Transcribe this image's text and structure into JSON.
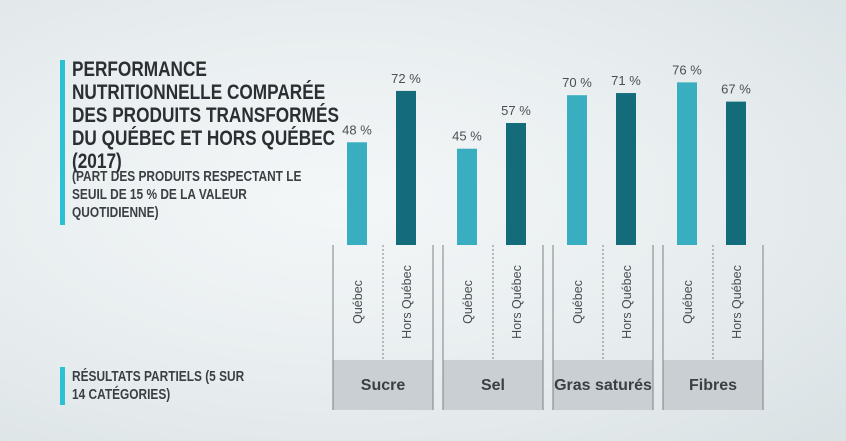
{
  "chart_data": {
    "type": "bar",
    "title": "PERFORMANCE NUTRITIONNELLE COMPARÉE DES PRODUITS TRANSFORMÉS DU QUÉBEC ET HORS QUÉBEC (2017)",
    "subtitle": "(PART DES PRODUITS RESPECTANT LE SEUIL DE 15 % DE LA VALEUR QUOTIDIENNE)",
    "note": "RÉSULTATS PARTIELS (5 SUR 14 CATÉGORIES)",
    "categories": [
      "Sucre",
      "Sel",
      "Gras saturés",
      "Fibres"
    ],
    "series": [
      {
        "name": "Québec",
        "color": "#3aaec1",
        "values": [
          48,
          45,
          70,
          76
        ],
        "value_labels": [
          "48 %",
          "45 %",
          "70 %",
          "76 %"
        ]
      },
      {
        "name": "Hors Québec",
        "color": "#146b79",
        "values": [
          72,
          57,
          71,
          67
        ],
        "value_labels": [
          "72 %",
          "57 %",
          "71 %",
          "67 %"
        ]
      }
    ],
    "ylim": [
      0,
      100
    ]
  }
}
